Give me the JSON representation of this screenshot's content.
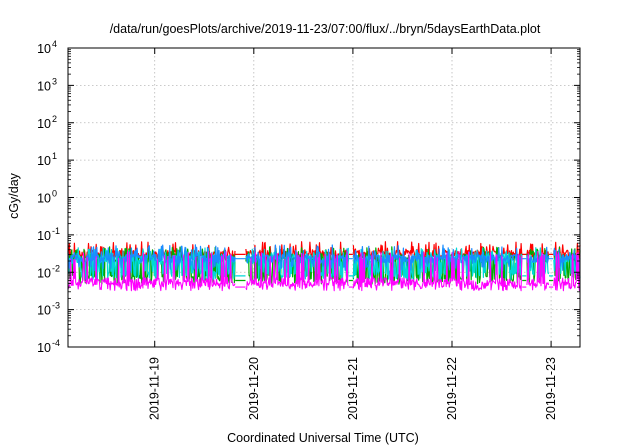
{
  "chart_data": {
    "type": "line",
    "title": "/data/run/goesPlots/archive/2019-11-23/07:00/flux/../bryn/5daysEarthData.plot",
    "xlabel": "Coordinated Universal Time (UTC)",
    "ylabel": "cGy/day",
    "yscale": "log",
    "grid": true,
    "legend": "none",
    "xlim": [
      "2019-11-18 03:00",
      "2019-11-23 07:00"
    ],
    "ylim": [
      0.0001,
      10000
    ],
    "x_ticks": [
      "2019-11-19",
      "2019-11-20",
      "2019-11-21",
      "2019-11-22",
      "2019-11-23"
    ],
    "y_ticks": [
      {
        "value": 0.0001,
        "base": "10",
        "exp": "-4"
      },
      {
        "value": 0.001,
        "base": "10",
        "exp": "-3"
      },
      {
        "value": 0.01,
        "base": "10",
        "exp": "-2"
      },
      {
        "value": 0.1,
        "base": "10",
        "exp": "-1"
      },
      {
        "value": 1,
        "base": "10",
        "exp": "0"
      },
      {
        "value": 10,
        "base": "10",
        "exp": "1"
      },
      {
        "value": 100,
        "base": "10",
        "exp": "2"
      },
      {
        "value": 1000,
        "base": "10",
        "exp": "3"
      },
      {
        "value": 10000,
        "base": "10",
        "exp": "4"
      }
    ],
    "data_gaps": [
      [
        "2019-11-19 19:30",
        "2019-11-19 22:00"
      ],
      [
        "2019-11-20 23:00",
        "2019-11-21 00:00"
      ],
      [
        "2019-11-22 17:00",
        "2019-11-22 18:00"
      ],
      [
        "2019-11-22 23:30",
        "2019-11-23 00:30"
      ]
    ],
    "series": [
      {
        "color": "#ff0000",
        "baseline": 0.03,
        "peak": 0.055,
        "low": 0.022,
        "spiky": false
      },
      {
        "color": "#00aa00",
        "baseline": 0.024,
        "peak": 0.04,
        "low": 0.006,
        "spiky": true
      },
      {
        "color": "#00d8d8",
        "baseline": 0.022,
        "peak": 0.038,
        "low": 0.008,
        "spiky": true
      },
      {
        "color": "#1a8cff",
        "baseline": 0.023,
        "peak": 0.045,
        "low": 0.012,
        "spiky": false
      },
      {
        "color": "#ff00ff",
        "baseline": 0.0055,
        "peak": 0.03,
        "low": 0.004,
        "spiky": true
      }
    ]
  }
}
